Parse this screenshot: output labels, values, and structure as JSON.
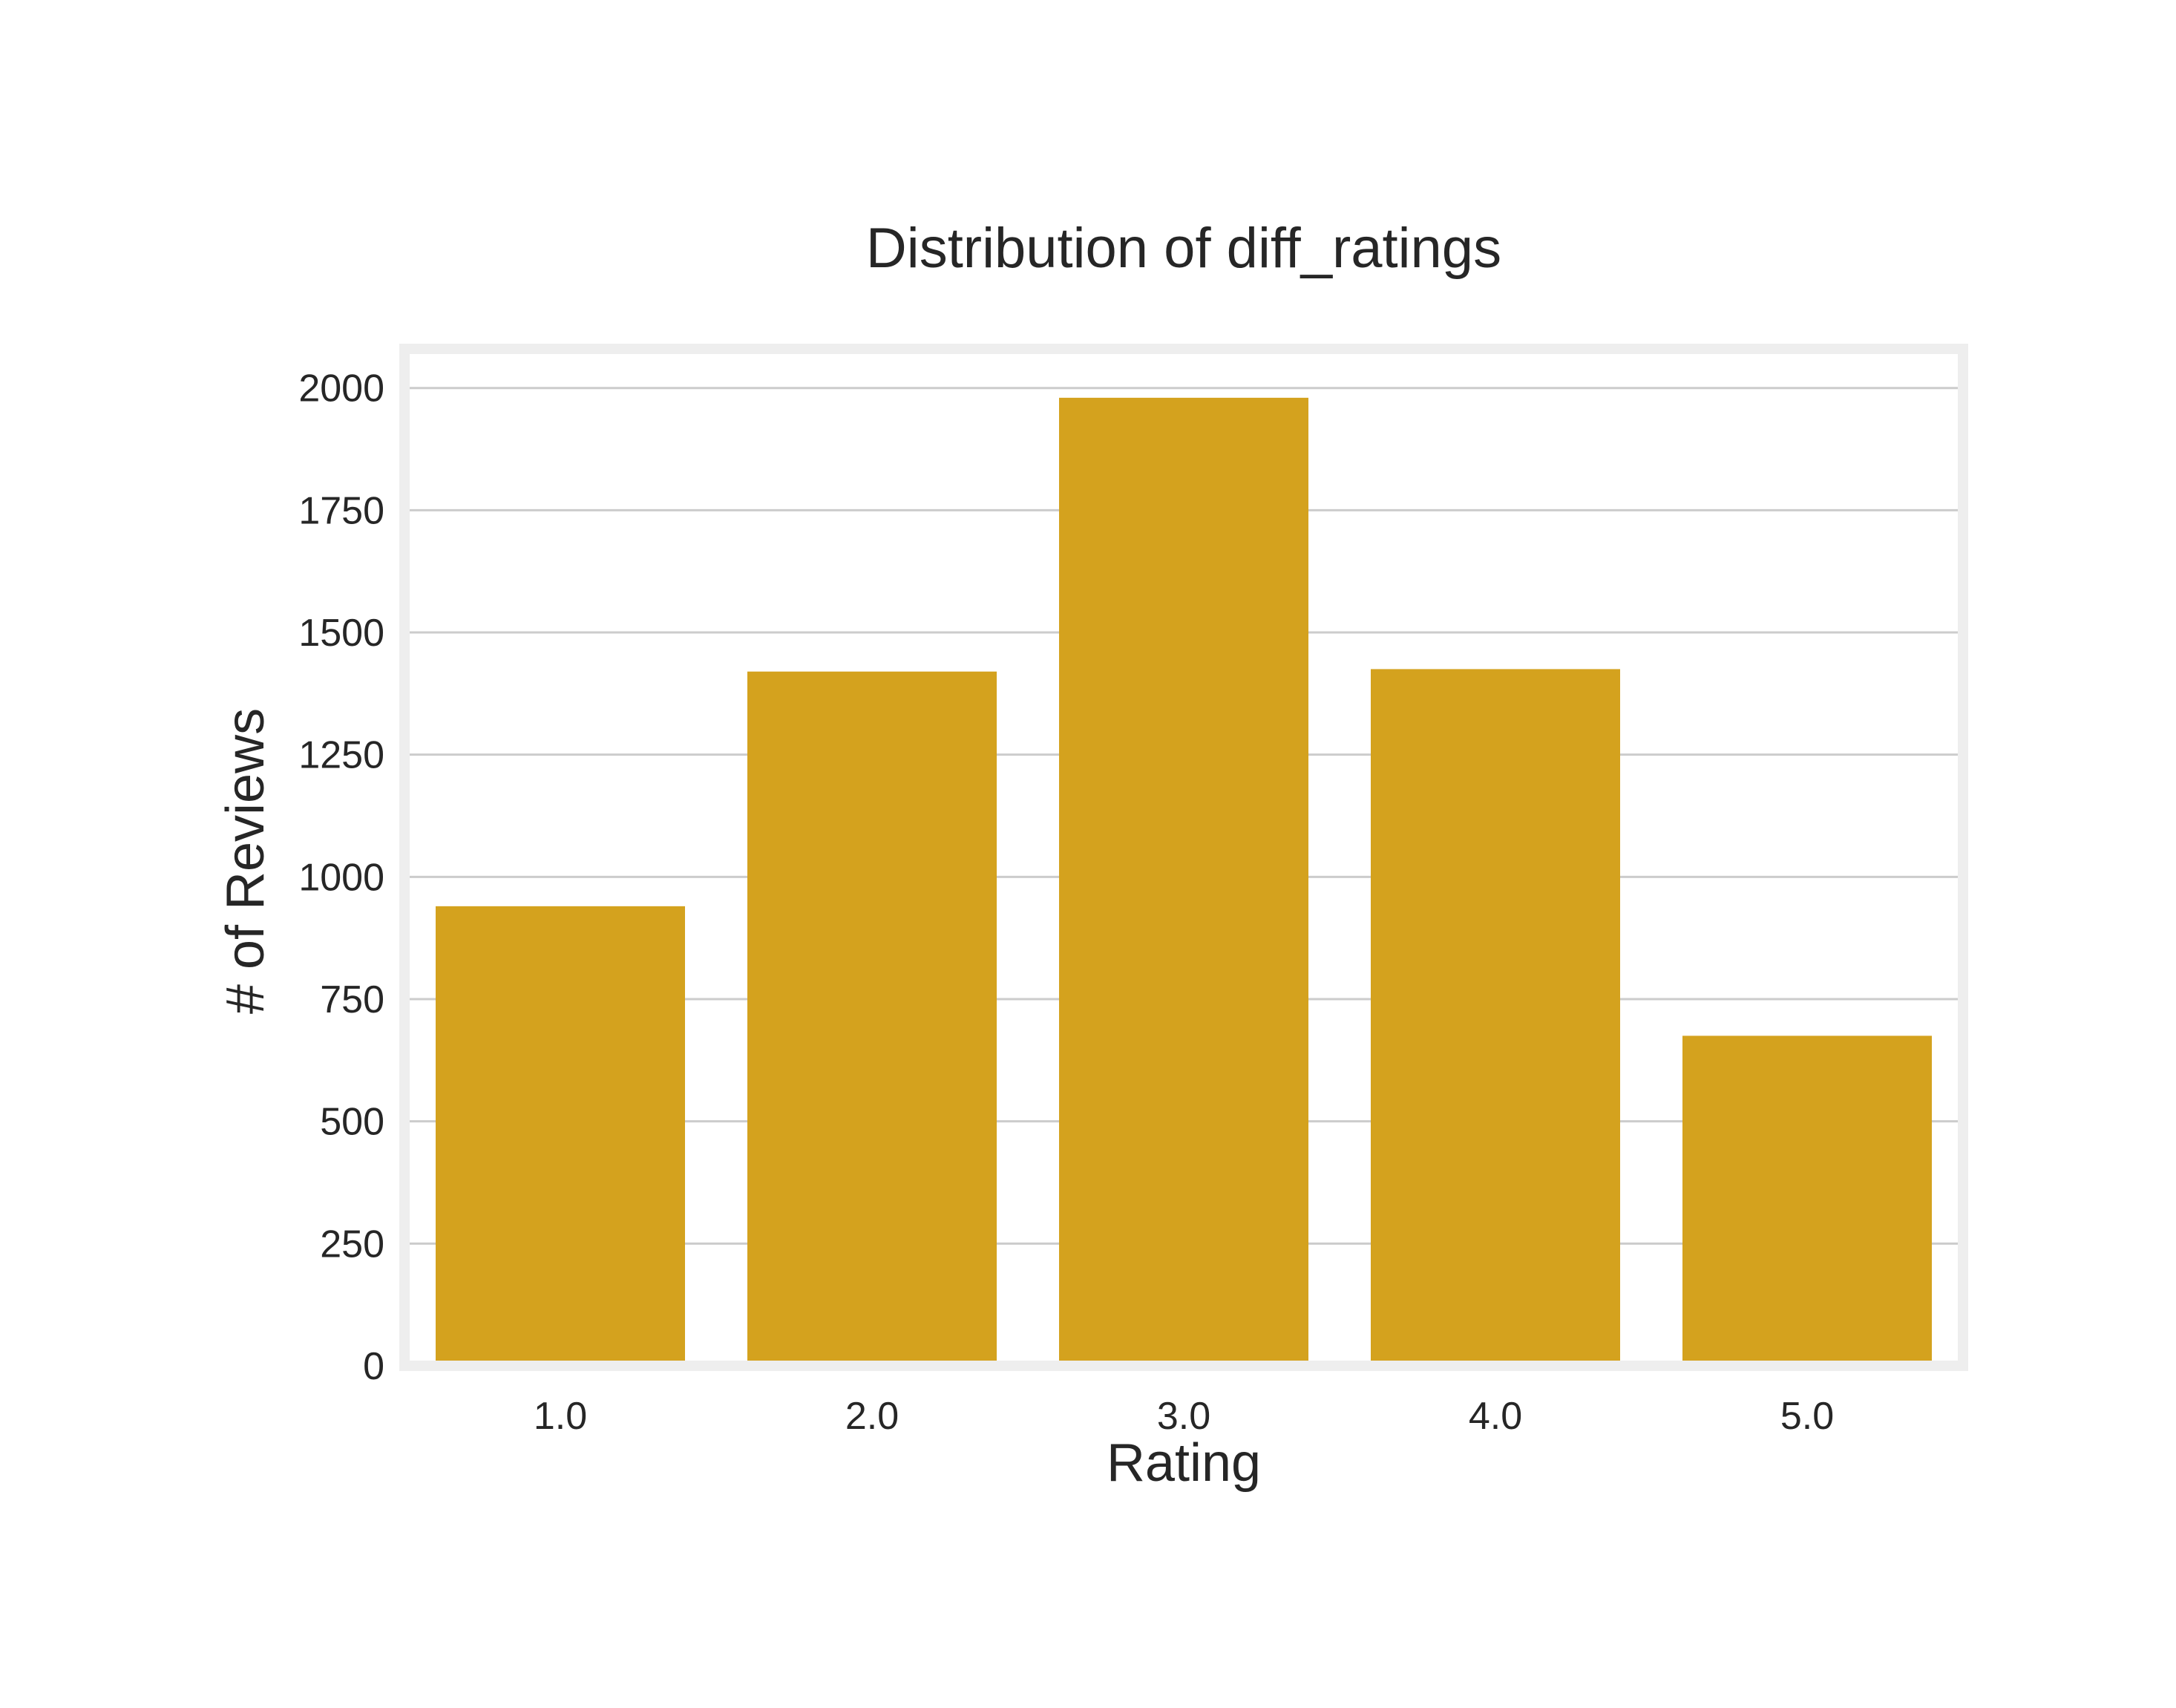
{
  "chart_data": {
    "type": "bar",
    "title": "Distribution of diff_ratings",
    "xlabel": "Rating",
    "ylabel": "# of Reviews",
    "categories": [
      "1.0",
      "2.0",
      "3.0",
      "4.0",
      "5.0"
    ],
    "values": [
      940,
      1420,
      1980,
      1425,
      675
    ],
    "ylim": [
      0,
      2080
    ],
    "yticks": [
      0,
      250,
      500,
      750,
      1000,
      1250,
      1500,
      1750,
      2000
    ],
    "ytick_labels": [
      "0",
      "250",
      "500",
      "750",
      "1000",
      "1250",
      "1500",
      "1750",
      "2000"
    ],
    "grid": true,
    "legend": false,
    "colors": {
      "bar": "#D4A21E",
      "grid": "#CCCCCC",
      "frame": "#EEEEEE",
      "text": "#262626"
    }
  }
}
